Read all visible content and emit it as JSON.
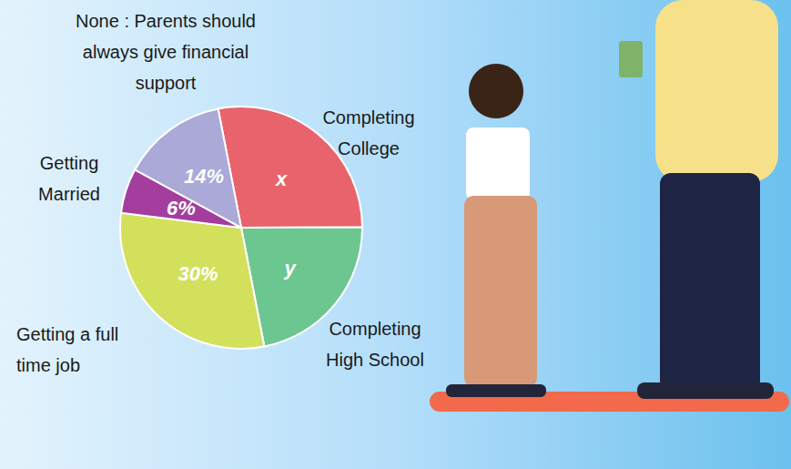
{
  "chart_data": {
    "type": "pie",
    "categories": [
      "Completing College",
      "Completing High School",
      "Getting a full time job",
      "Getting Married",
      "None : Parents should always give financial support"
    ],
    "values": [
      28,
      22,
      30,
      6,
      14
    ],
    "value_labels": [
      "x",
      "y",
      "30%",
      "6%",
      "14%"
    ],
    "colors": [
      "#e8636b",
      "#6cc690",
      "#d3e05c",
      "#a43e9e",
      "#aaa9d8"
    ],
    "data_labels": true
  }
}
